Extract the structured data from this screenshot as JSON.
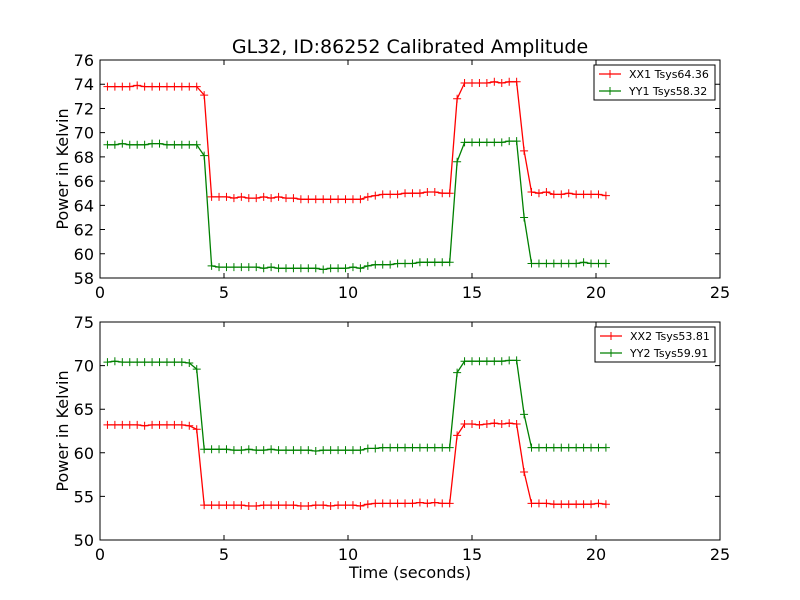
{
  "colors": {
    "red": "#ff0000",
    "green": "#008000",
    "axis": "#000000",
    "background": "#ffffff"
  },
  "chart_data": [
    {
      "type": "line",
      "title": "GL32, ID:86252 Calibrated Amplitude",
      "xlabel": "",
      "ylabel": "Power in Kelvin",
      "xlim": [
        0,
        25
      ],
      "ylim": [
        58,
        76
      ],
      "xticks": [
        "0",
        "5",
        "10",
        "15",
        "20",
        "25"
      ],
      "yticks": [
        "58",
        "60",
        "62",
        "64",
        "66",
        "68",
        "70",
        "72",
        "74",
        "76"
      ],
      "grid": false,
      "legend_position": "top-right",
      "x": [
        0.3,
        0.6,
        0.9,
        1.2,
        1.5,
        1.8,
        2.1,
        2.4,
        2.7,
        3.0,
        3.3,
        3.6,
        3.9,
        4.2,
        4.5,
        4.8,
        5.1,
        5.4,
        5.7,
        6.0,
        6.3,
        6.6,
        6.9,
        7.2,
        7.5,
        7.8,
        8.1,
        8.4,
        8.7,
        9.0,
        9.3,
        9.6,
        9.9,
        10.2,
        10.5,
        10.8,
        11.1,
        11.4,
        11.7,
        12.0,
        12.3,
        12.6,
        12.9,
        13.2,
        13.5,
        13.8,
        14.1,
        14.4,
        14.7,
        15.0,
        15.3,
        15.6,
        15.9,
        16.2,
        16.5,
        16.8,
        17.1,
        17.4,
        17.7,
        18.0,
        18.3,
        18.6,
        18.9,
        19.2,
        19.5,
        19.8,
        20.1,
        20.4
      ],
      "series": [
        {
          "name": "XX1 Tsys64.36",
          "color": "#ff0000",
          "values": [
            73.8,
            73.8,
            73.8,
            73.8,
            73.9,
            73.8,
            73.8,
            73.8,
            73.8,
            73.8,
            73.8,
            73.8,
            73.8,
            73.1,
            64.7,
            64.7,
            64.7,
            64.6,
            64.7,
            64.6,
            64.6,
            64.7,
            64.6,
            64.7,
            64.6,
            64.6,
            64.5,
            64.5,
            64.5,
            64.5,
            64.5,
            64.5,
            64.5,
            64.5,
            64.5,
            64.7,
            64.8,
            64.9,
            64.9,
            64.9,
            65.0,
            65.0,
            65.0,
            65.1,
            65.1,
            65.0,
            65.0,
            72.8,
            74.1,
            74.1,
            74.1,
            74.1,
            74.2,
            74.1,
            74.2,
            74.2,
            68.5,
            65.1,
            65.0,
            65.1,
            64.9,
            64.9,
            65.0,
            64.9,
            64.9,
            64.9,
            64.9,
            64.8
          ]
        },
        {
          "name": "YY1 Tsys58.32",
          "color": "#008000",
          "values": [
            69.0,
            69.0,
            69.1,
            69.0,
            69.0,
            69.0,
            69.1,
            69.1,
            69.0,
            69.0,
            69.0,
            69.0,
            69.0,
            68.1,
            59.0,
            58.9,
            58.9,
            58.9,
            58.9,
            58.9,
            58.9,
            58.8,
            58.9,
            58.8,
            58.8,
            58.8,
            58.8,
            58.8,
            58.8,
            58.7,
            58.8,
            58.8,
            58.8,
            58.9,
            58.8,
            59.0,
            59.1,
            59.1,
            59.1,
            59.2,
            59.2,
            59.2,
            59.3,
            59.3,
            59.3,
            59.3,
            59.3,
            67.6,
            69.2,
            69.2,
            69.2,
            69.2,
            69.2,
            69.2,
            69.3,
            69.3,
            63.0,
            59.2,
            59.2,
            59.2,
            59.2,
            59.2,
            59.2,
            59.2,
            59.3,
            59.2,
            59.2,
            59.2
          ]
        }
      ]
    },
    {
      "type": "line",
      "title": "",
      "xlabel": "Time (seconds)",
      "ylabel": "Power in Kelvin",
      "xlim": [
        0,
        25
      ],
      "ylim": [
        50,
        75
      ],
      "xticks": [
        "0",
        "5",
        "10",
        "15",
        "20",
        "25"
      ],
      "yticks": [
        "50",
        "55",
        "60",
        "65",
        "70",
        "75"
      ],
      "grid": false,
      "legend_position": "top-right",
      "x": [
        0.3,
        0.6,
        0.9,
        1.2,
        1.5,
        1.8,
        2.1,
        2.4,
        2.7,
        3.0,
        3.3,
        3.6,
        3.9,
        4.2,
        4.5,
        4.8,
        5.1,
        5.4,
        5.7,
        6.0,
        6.3,
        6.6,
        6.9,
        7.2,
        7.5,
        7.8,
        8.1,
        8.4,
        8.7,
        9.0,
        9.3,
        9.6,
        9.9,
        10.2,
        10.5,
        10.8,
        11.1,
        11.4,
        11.7,
        12.0,
        12.3,
        12.6,
        12.9,
        13.2,
        13.5,
        13.8,
        14.1,
        14.4,
        14.7,
        15.0,
        15.3,
        15.6,
        15.9,
        16.2,
        16.5,
        16.8,
        17.1,
        17.4,
        17.7,
        18.0,
        18.3,
        18.6,
        18.9,
        19.2,
        19.5,
        19.8,
        20.1,
        20.4
      ],
      "series": [
        {
          "name": "XX2 Tsys53.81",
          "color": "#ff0000",
          "values": [
            63.2,
            63.2,
            63.2,
            63.2,
            63.2,
            63.1,
            63.2,
            63.2,
            63.2,
            63.2,
            63.2,
            63.1,
            62.7,
            54.0,
            54.0,
            54.0,
            54.0,
            54.0,
            54.0,
            53.9,
            53.9,
            54.0,
            54.0,
            54.0,
            54.0,
            54.0,
            53.9,
            53.9,
            54.0,
            54.0,
            53.9,
            54.0,
            54.0,
            54.0,
            53.9,
            54.1,
            54.2,
            54.2,
            54.2,
            54.2,
            54.2,
            54.2,
            54.3,
            54.2,
            54.3,
            54.2,
            54.2,
            62.0,
            63.3,
            63.3,
            63.2,
            63.3,
            63.4,
            63.3,
            63.4,
            63.3,
            57.8,
            54.2,
            54.2,
            54.2,
            54.1,
            54.1,
            54.1,
            54.1,
            54.1,
            54.1,
            54.2,
            54.1
          ]
        },
        {
          "name": "YY2 Tsys59.91",
          "color": "#008000",
          "values": [
            70.4,
            70.5,
            70.4,
            70.4,
            70.4,
            70.4,
            70.4,
            70.4,
            70.4,
            70.4,
            70.4,
            70.3,
            69.6,
            60.4,
            60.4,
            60.4,
            60.4,
            60.3,
            60.3,
            60.4,
            60.3,
            60.3,
            60.4,
            60.3,
            60.3,
            60.3,
            60.3,
            60.3,
            60.2,
            60.3,
            60.3,
            60.3,
            60.3,
            60.3,
            60.3,
            60.5,
            60.5,
            60.6,
            60.6,
            60.6,
            60.6,
            60.6,
            60.6,
            60.6,
            60.6,
            60.6,
            60.6,
            69.2,
            70.5,
            70.5,
            70.5,
            70.5,
            70.5,
            70.5,
            70.6,
            70.6,
            64.4,
            60.6,
            60.6,
            60.6,
            60.6,
            60.6,
            60.6,
            60.6,
            60.6,
            60.6,
            60.6,
            60.6
          ]
        }
      ]
    }
  ]
}
